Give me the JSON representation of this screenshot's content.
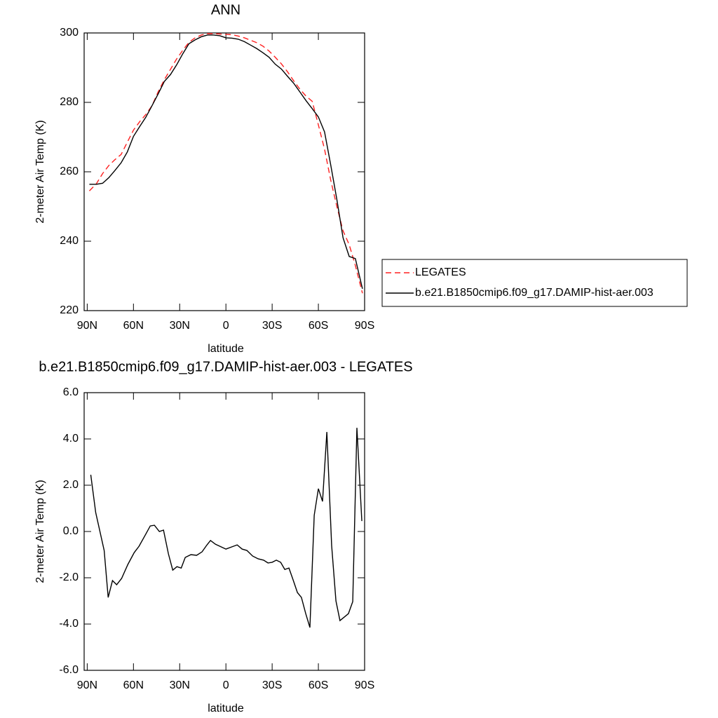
{
  "chart_data": [
    {
      "type": "line",
      "title": "ANN",
      "xlabel": "latitude",
      "ylabel": "2-meter Air Temp (K)",
      "x": [
        88.6,
        84,
        80,
        76,
        72,
        68,
        64,
        60,
        56,
        52,
        48,
        44,
        40,
        36,
        32,
        28,
        24,
        20,
        16,
        12,
        8,
        4,
        0,
        -4,
        -8,
        -12,
        -16,
        -20,
        -24,
        -28,
        -32,
        -36,
        -40,
        -44,
        -48,
        -52,
        -56,
        -60,
        -64,
        -68,
        -72,
        -76,
        -80,
        -84,
        -88.6
      ],
      "series": [
        {
          "name": "LEGATES",
          "color": "#ff2020",
          "line_style": "dashed",
          "values": [
            254.5,
            256.6,
            259.5,
            261.8,
            263.5,
            265,
            268.5,
            272,
            274.4,
            276.5,
            279,
            283,
            286.5,
            289.5,
            292.5,
            295,
            297.3,
            298.6,
            299.4,
            299.8,
            299.8,
            299.7,
            299.6,
            299.5,
            299.1,
            298.6,
            297.9,
            297.2,
            296.2,
            294.8,
            293,
            291.1,
            288.8,
            286.2,
            283.8,
            281.8,
            280.3,
            273.5,
            266.5,
            257.6,
            250,
            243,
            239,
            233,
            225
          ]
        },
        {
          "name": "b.e21.B1850cmip6.f09_g17.DAMIP-hist-aer.003",
          "color": "#000000",
          "line_style": "solid",
          "values": [
            256.4,
            256.4,
            256.7,
            258.3,
            260.4,
            262.6,
            265.7,
            270.2,
            273,
            275.7,
            279,
            282.4,
            286,
            288,
            290.8,
            294,
            296.9,
            298,
            298.9,
            299.4,
            299.4,
            299.2,
            298.6,
            298.5,
            298.2,
            297.5,
            296.5,
            295.5,
            294.3,
            293,
            291,
            289.6,
            287.5,
            285.5,
            283,
            280.5,
            278.2,
            275.8,
            271.5,
            262,
            252,
            241,
            235.6,
            235,
            226.3
          ]
        }
      ],
      "xlim": [
        92,
        -90
      ],
      "ylim": [
        220,
        300
      ],
      "xticks": [
        {
          "value": 90,
          "label": "90N"
        },
        {
          "value": 60,
          "label": "60N"
        },
        {
          "value": 30,
          "label": "30N"
        },
        0,
        {
          "value": -30,
          "label": "30S"
        },
        {
          "value": -60,
          "label": "60S"
        },
        {
          "value": -90,
          "label": "90S"
        }
      ],
      "yticks": [
        220,
        240,
        260,
        280,
        300
      ],
      "grid": false,
      "legend": "right"
    },
    {
      "type": "line",
      "title": "b.e21.B1850cmip6.f09_g17.DAMIP-hist-aer.003 - LEGATES",
      "xlabel": "latitude",
      "ylabel": "2-meter Air Temp (K)",
      "x": [
        87.7,
        84.5,
        79,
        76.4,
        73.6,
        70.9,
        67.7,
        63.6,
        59.5,
        56.4,
        52.3,
        49.1,
        46.4,
        43.2,
        40.5,
        37.3,
        34.5,
        31.8,
        29,
        26.4,
        22.7,
        19,
        15.5,
        12.3,
        10,
        6.8,
        0,
        -3.6,
        -7.3,
        -10.5,
        -13.6,
        -17.3,
        -20.9,
        -24.5,
        -27.3,
        -30,
        -32.7,
        -35.5,
        -38.2,
        -40.9,
        -43.6,
        -46.4,
        -49,
        -51.8,
        -54.5,
        -57.3,
        -60,
        -62.7,
        -65.5,
        -68.6,
        -71.4,
        -74,
        -76.8,
        -79.5,
        -82.3,
        -85,
        -88.2
      ],
      "series": [
        {
          "color": "#000000",
          "line_style": "solid",
          "values": [
            2.45,
            0.82,
            -0.82,
            -2.85,
            -2.12,
            -2.3,
            -2.03,
            -1.42,
            -0.91,
            -0.64,
            -0.15,
            0.24,
            0.27,
            0,
            0.06,
            -0.97,
            -1.67,
            -1.52,
            -1.58,
            -1.12,
            -1.0,
            -1.03,
            -0.88,
            -0.58,
            -0.39,
            -0.55,
            -0.76,
            -0.67,
            -0.58,
            -0.76,
            -0.82,
            -1.06,
            -1.18,
            -1.24,
            -1.36,
            -1.33,
            -1.24,
            -1.33,
            -1.64,
            -1.58,
            -2.09,
            -2.64,
            -2.85,
            -3.55,
            -4.15,
            0.7,
            1.85,
            1.3,
            4.3,
            -0.6,
            -3.0,
            -3.85,
            -3.7,
            -3.55,
            -3.03,
            4.48,
            0.45
          ]
        }
      ],
      "xlim": [
        92,
        -90
      ],
      "ylim": [
        -6,
        6
      ],
      "xticks": [
        {
          "value": 90,
          "label": "90N"
        },
        {
          "value": 60,
          "label": "60N"
        },
        {
          "value": 30,
          "label": "30N"
        },
        0,
        {
          "value": -30,
          "label": "30S"
        },
        {
          "value": -60,
          "label": "60S"
        },
        {
          "value": -90,
          "label": "90S"
        }
      ],
      "yticks": [
        {
          "value": -6,
          "label": "-6.0"
        },
        {
          "value": -4,
          "label": "-4.0"
        },
        {
          "value": -2,
          "label": "-2.0"
        },
        {
          "value": 0,
          "label": "0.0"
        },
        {
          "value": 2,
          "label": "2.0"
        },
        {
          "value": 4,
          "label": "4.0"
        },
        {
          "value": 6,
          "label": "6.0"
        }
      ],
      "grid": false
    }
  ]
}
